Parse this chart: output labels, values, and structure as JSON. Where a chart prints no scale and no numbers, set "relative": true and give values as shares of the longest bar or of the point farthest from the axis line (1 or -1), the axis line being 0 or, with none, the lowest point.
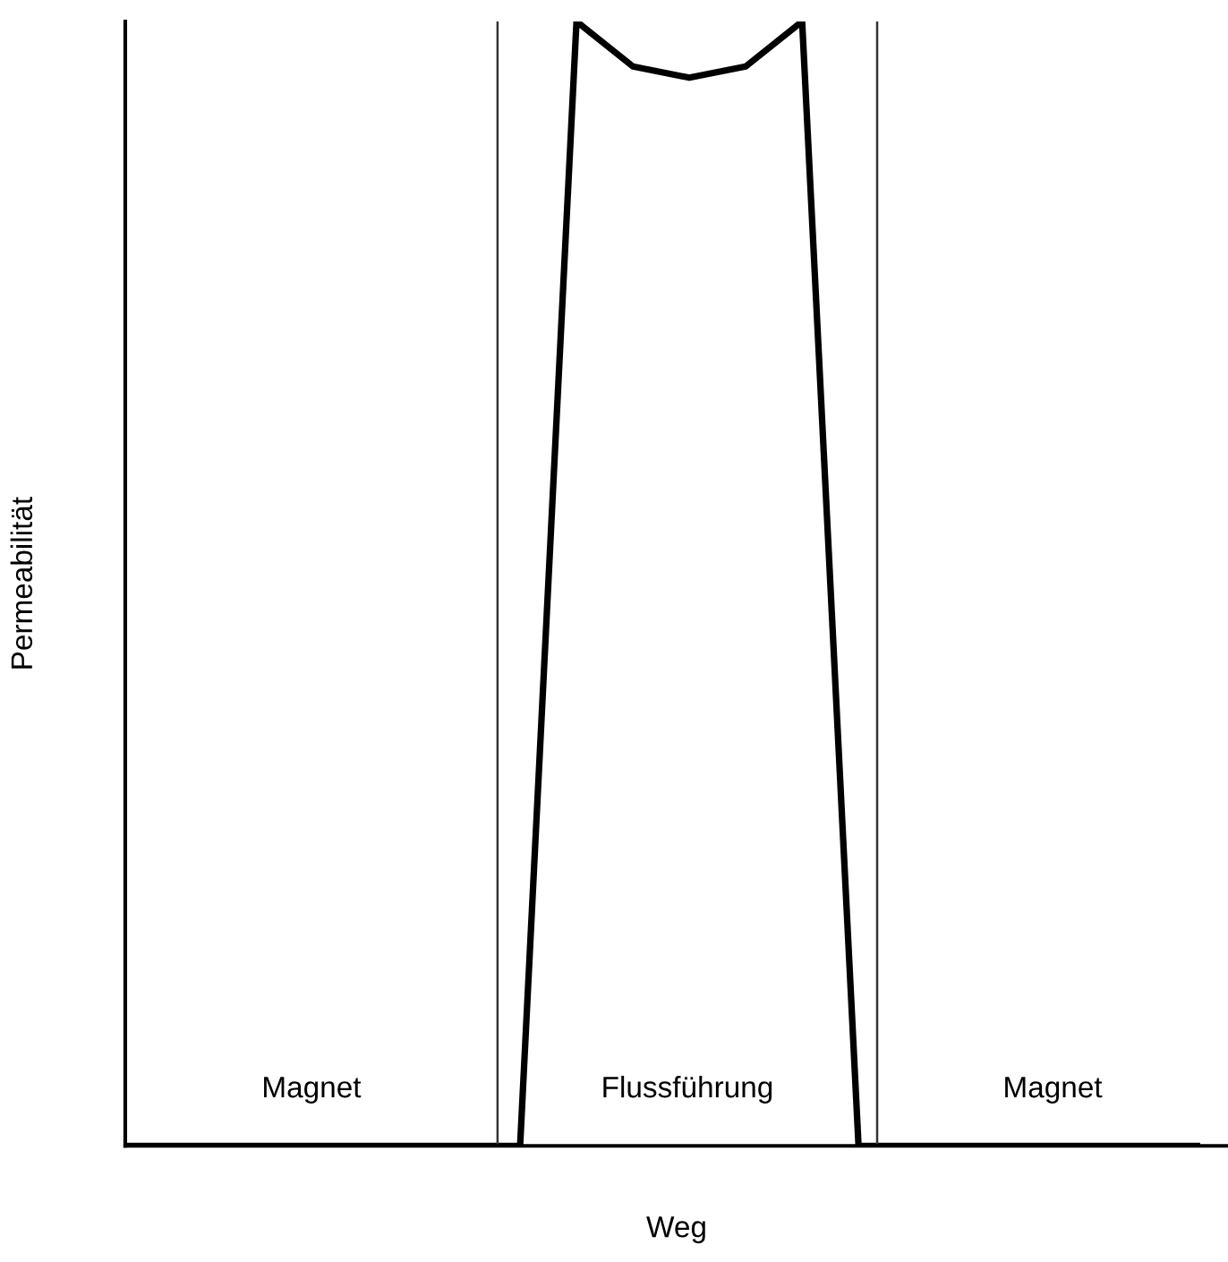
{
  "chart_data": {
    "type": "line",
    "relative": true,
    "xlabel": "Weg",
    "ylabel": "Permeabilität",
    "categories": [
      null,
      null,
      null,
      null,
      null,
      null,
      null,
      null,
      null,
      null,
      null,
      null,
      null,
      null,
      null,
      null,
      null,
      null,
      null,
      null
    ],
    "series": [
      {
        "color": "#000000",
        "values": [
          0,
          0,
          0,
          0,
          0,
          0,
          0,
          0,
          1,
          0.96,
          0.95,
          0.96,
          1,
          0,
          0,
          0,
          0,
          0,
          0,
          0
        ]
      }
    ],
    "annotations": [
      "Magnet",
      "Flussführung",
      "Magnet"
    ],
    "legend": false,
    "marker": "none",
    "line_style": "solid"
  }
}
